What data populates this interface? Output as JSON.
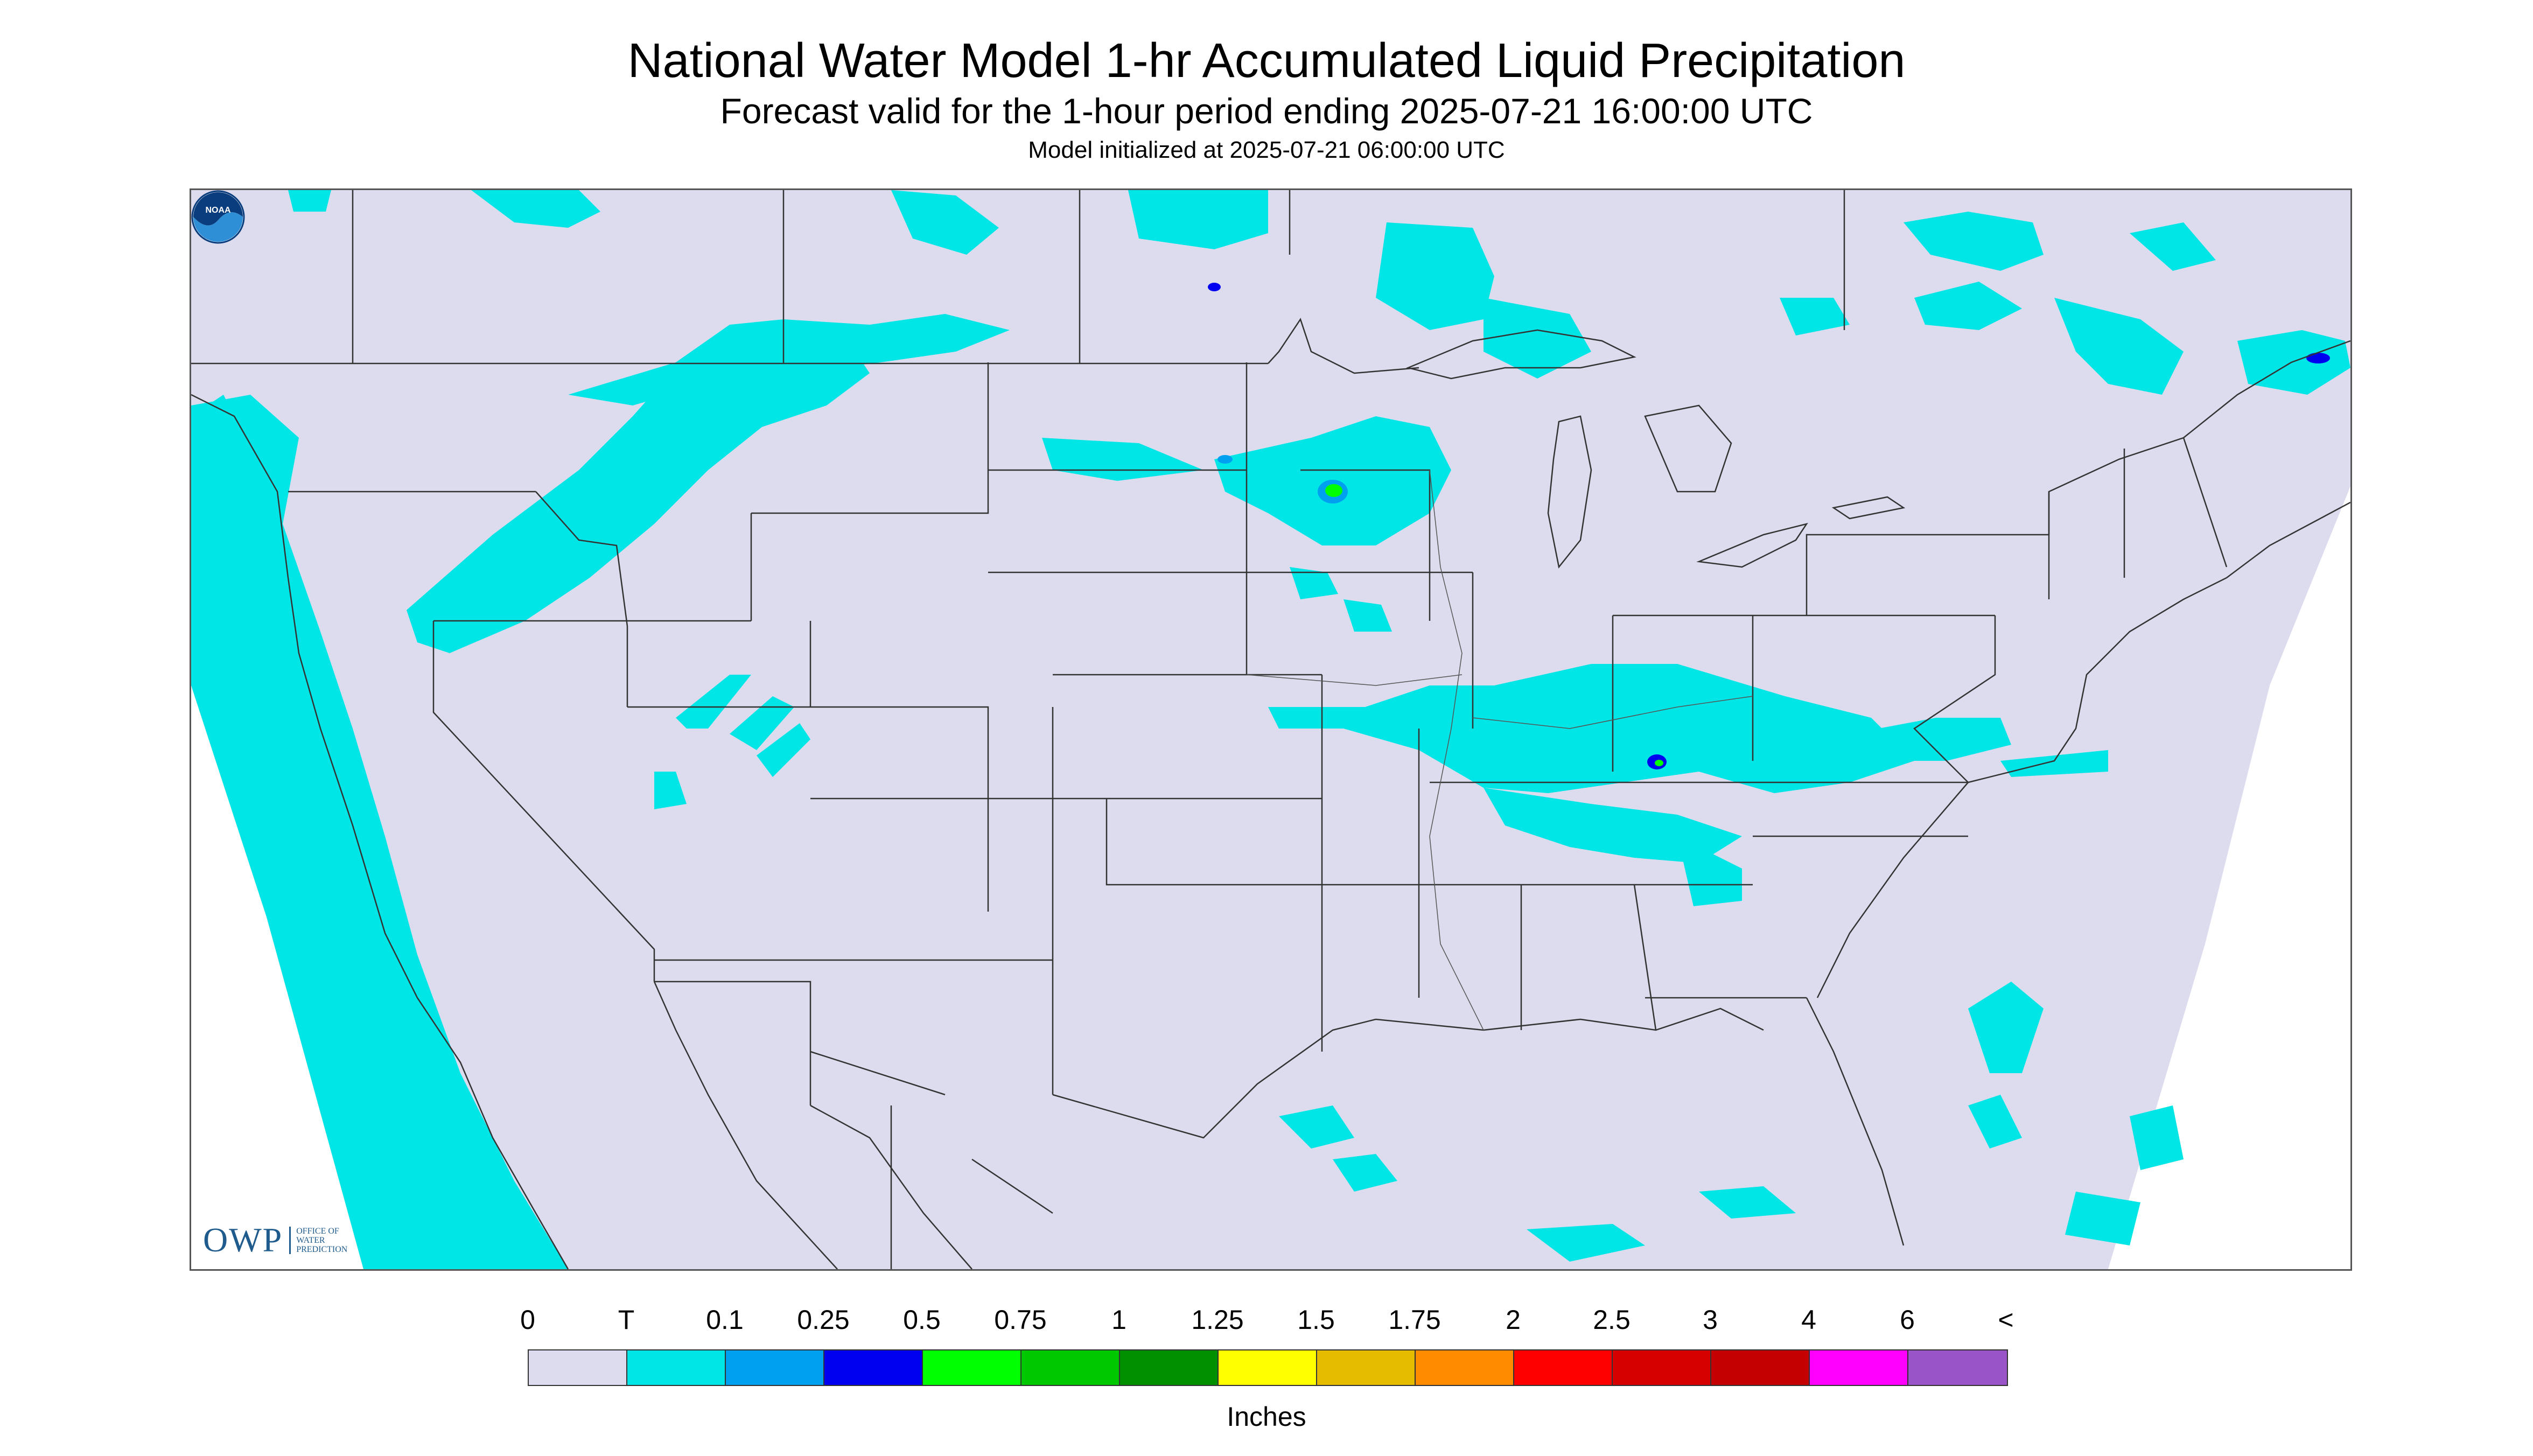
{
  "title": "National Water Model 1-hr Accumulated Liquid Precipitation",
  "subtitle": "Forecast valid for the 1-hour period ending 2025-07-21 16:00:00 UTC",
  "init_line": "Model initialized at 2025-07-21 06:00:00 UTC",
  "colors": {
    "background": "#dcdcee",
    "trace": "#00e5e5",
    "boundary": "#333333"
  },
  "logos": {
    "owp_letters": "OWP",
    "owp_sub": "OFFICE OF\nWATER\nPREDICTION",
    "noaa_text": "NOAA",
    "owp_icon": "owp-logo",
    "noaa_icon": "noaa-logo"
  },
  "legend": {
    "labels": [
      "0",
      "T",
      "0.1",
      "0.25",
      "0.5",
      "0.75",
      "1",
      "1.25",
      "1.5",
      "1.75",
      "2",
      "2.5",
      "3",
      "4",
      "6",
      "<"
    ],
    "colors": [
      "#dcdcee",
      "#00e5e5",
      "#00a0f0",
      "#0000f0",
      "#00ff00",
      "#00c800",
      "#009000",
      "#ffff00",
      "#e6bc00",
      "#ff8c00",
      "#ff0000",
      "#d70000",
      "#c40000",
      "#ff00ff",
      "#9955c8"
    ],
    "units": "Inches"
  }
}
